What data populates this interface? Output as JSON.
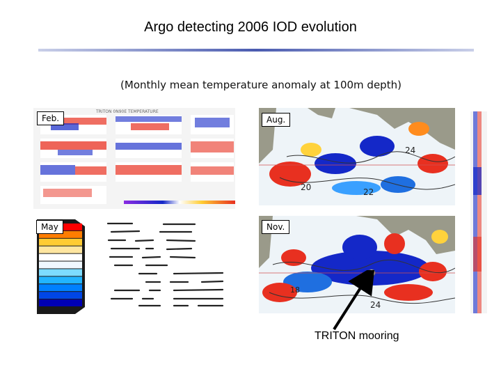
{
  "slide": {
    "title": "Argo detecting 2006 IOD evolution",
    "subtitle": "(Monthly mean temperature anomaly at 100m depth)"
  },
  "labels": {
    "feb": "Feb.",
    "may": "May",
    "aug": "Aug.",
    "nov": "Nov.",
    "triton": "TRITON mooring"
  },
  "colors": {
    "rule": "#4a5bb0",
    "warm": "#e83020",
    "cool": "#1428c8",
    "land": "#9a9a8a"
  },
  "colorbar": [
    "#ff0000",
    "#ff7d00",
    "#ffcc33",
    "#ffe6a0",
    "#ffffff",
    "#f0f8ff",
    "#7ddcff",
    "#22b4ff",
    "#0080ff",
    "#0046e6",
    "#0000b4"
  ]
}
